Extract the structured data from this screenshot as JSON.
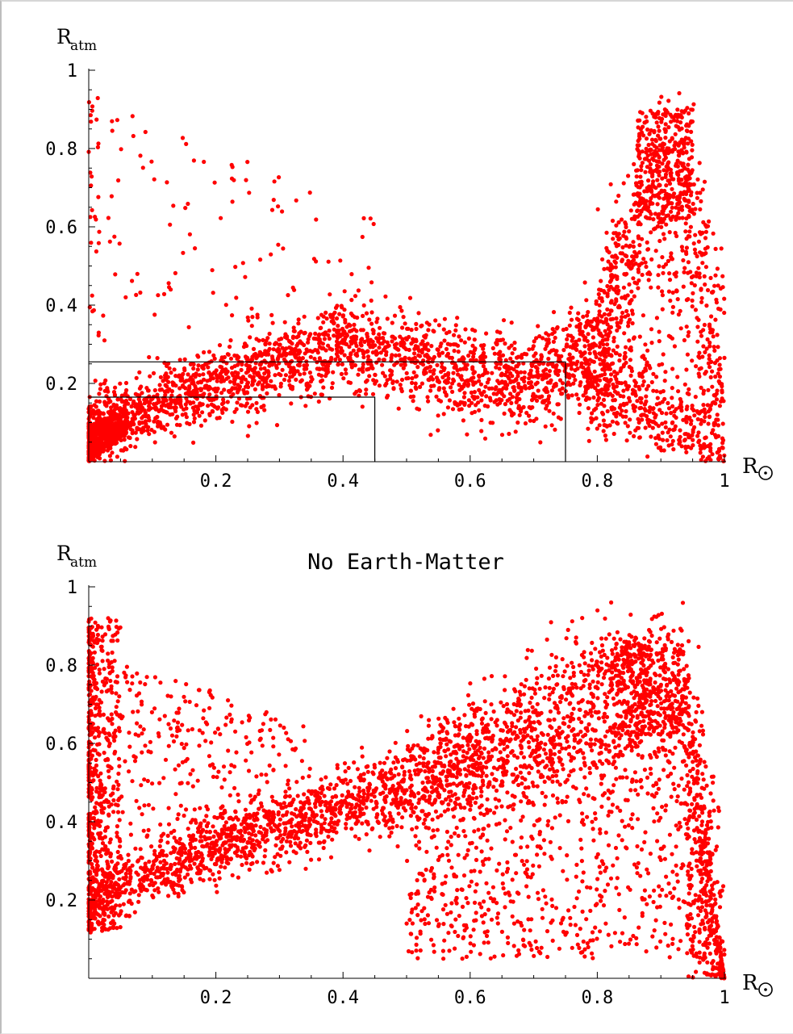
{
  "chart_data": [
    {
      "type": "scatter",
      "title": "",
      "ylabel": {
        "base": "R",
        "sub": "atm"
      },
      "xlabel": {
        "base": "R",
        "symbol": "⊙"
      },
      "xlim": [
        0,
        1
      ],
      "ylim": [
        0,
        1
      ],
      "x_ticks": [
        "0.2",
        "0.4",
        "0.6",
        "0.8",
        "1"
      ],
      "y_ticks": [
        "1",
        "0.8",
        "0.6",
        "0.4",
        "0.2"
      ],
      "marker_color": "#ff0000",
      "guide_lines": [
        {
          "x": 0.45,
          "y": 0.165
        },
        {
          "x": 0.75,
          "y": 0.255
        }
      ],
      "series_shape": [
        {
          "x": 0.0,
          "y": 0.04
        },
        {
          "x": 0.1,
          "y": 0.14
        },
        {
          "x": 0.2,
          "y": 0.2
        },
        {
          "x": 0.3,
          "y": 0.26
        },
        {
          "x": 0.4,
          "y": 0.3
        },
        {
          "x": 0.5,
          "y": 0.27
        },
        {
          "x": 0.6,
          "y": 0.22
        },
        {
          "x": 0.7,
          "y": 0.2
        },
        {
          "x": 0.8,
          "y": 0.3
        },
        {
          "x": 0.9,
          "y": 0.75
        },
        {
          "x": 0.95,
          "y": 0.7
        },
        {
          "x": 1.0,
          "y": 0.02
        }
      ]
    },
    {
      "type": "scatter",
      "title": "No Earth-Matter",
      "ylabel": {
        "base": "R",
        "sub": "atm"
      },
      "xlabel": {
        "base": "R",
        "symbol": "⊙"
      },
      "xlim": [
        0,
        1
      ],
      "ylim": [
        0,
        1
      ],
      "x_ticks": [
        "0.2",
        "0.4",
        "0.6",
        "0.8",
        "1"
      ],
      "y_ticks": [
        "1",
        "0.8",
        "0.6",
        "0.4",
        "0.2"
      ],
      "marker_color": "#ff0000",
      "guide_lines": [],
      "series_shape": [
        {
          "x": 0.0,
          "y": 0.2
        },
        {
          "x": 0.1,
          "y": 0.27
        },
        {
          "x": 0.2,
          "y": 0.33
        },
        {
          "x": 0.3,
          "y": 0.39
        },
        {
          "x": 0.4,
          "y": 0.44
        },
        {
          "x": 0.5,
          "y": 0.49
        },
        {
          "x": 0.6,
          "y": 0.55
        },
        {
          "x": 0.7,
          "y": 0.62
        },
        {
          "x": 0.8,
          "y": 0.7
        },
        {
          "x": 0.9,
          "y": 0.77
        },
        {
          "x": 0.95,
          "y": 0.6
        },
        {
          "x": 1.0,
          "y": 0.02
        }
      ]
    }
  ]
}
